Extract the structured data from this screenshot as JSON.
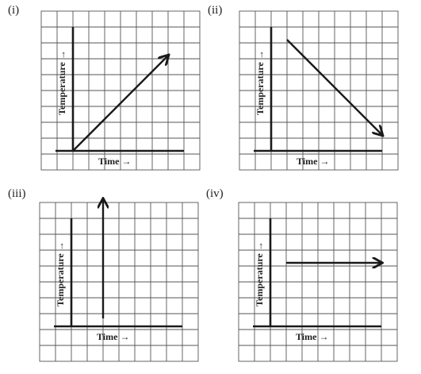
{
  "chart_data": [
    {
      "type": "line",
      "label": "(i)",
      "xlabel": "Time →",
      "ylabel": "Temperature →",
      "grid": true,
      "xlim": [
        -1,
        7
      ],
      "ylim": [
        -1,
        8
      ],
      "series": [
        {
          "x": [
            0,
            6
          ],
          "y": [
            0,
            6
          ],
          "arrow": "end"
        }
      ]
    },
    {
      "type": "line",
      "label": "(ii)",
      "xlabel": "Time →",
      "ylabel": "Temperature →",
      "grid": true,
      "xlim": [
        -1,
        7
      ],
      "ylim": [
        -1,
        8
      ],
      "series": [
        {
          "x": [
            1,
            7
          ],
          "y": [
            7,
            1
          ],
          "arrow": "end"
        }
      ]
    },
    {
      "type": "line",
      "label": "(iii)",
      "xlabel": "Time →",
      "ylabel": "Temperature →",
      "grid": true,
      "xlim": [
        -1,
        7
      ],
      "ylim": [
        -1,
        8
      ],
      "series": [
        {
          "x": [
            2,
            2
          ],
          "y": [
            0.5,
            8
          ],
          "arrow": "end"
        }
      ]
    },
    {
      "type": "line",
      "label": "(iv)",
      "xlabel": "Time →",
      "ylabel": "Temperature →",
      "grid": true,
      "xlim": [
        -1,
        7
      ],
      "ylim": [
        -1,
        8
      ],
      "series": [
        {
          "x": [
            1,
            7
          ],
          "y": [
            4,
            4
          ],
          "arrow": "end"
        }
      ]
    }
  ],
  "colors": {
    "grid": "#555555",
    "axis": "#1a1a1a",
    "line": "#1a1a1a"
  }
}
